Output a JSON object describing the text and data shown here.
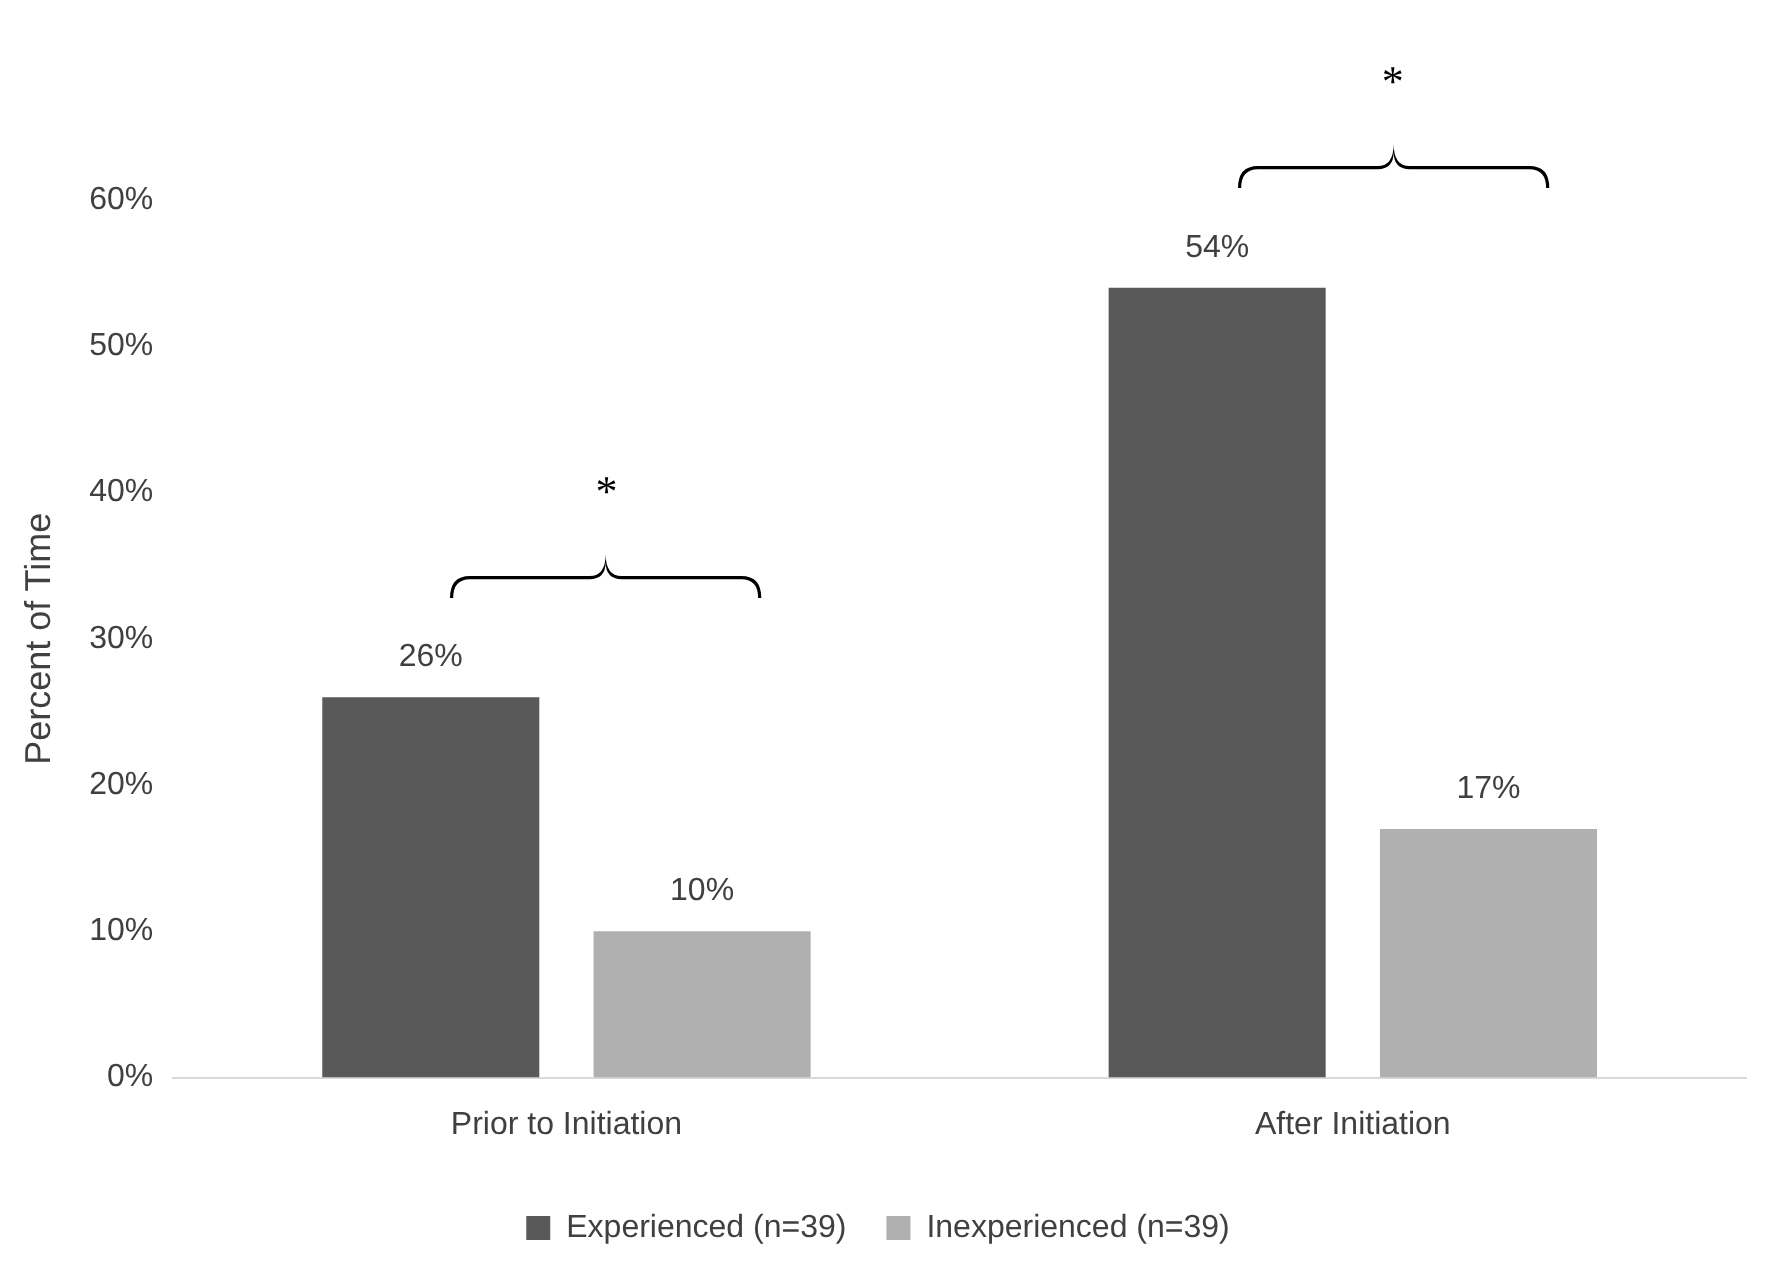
{
  "chart_data": {
    "type": "bar",
    "categories": [
      "Prior to Initiation",
      "After Initiation"
    ],
    "series": [
      {
        "name": "Experienced (n=39)",
        "color": "#595959",
        "values": [
          26,
          54
        ],
        "value_labels": [
          "26%",
          "54%"
        ]
      },
      {
        "name": "Inexperienced (n=39)",
        "color": "#b0b0b0",
        "values": [
          10,
          17
        ],
        "value_labels": [
          "10%",
          "17%"
        ]
      }
    ],
    "ylabel": "Percent of Time",
    "ylim": [
      0,
      60
    ],
    "yticks": [
      {
        "value": 0,
        "label": "0%"
      },
      {
        "value": 10,
        "label": "10%"
      },
      {
        "value": 20,
        "label": "20%"
      },
      {
        "value": 30,
        "label": "30%"
      },
      {
        "value": 40,
        "label": "40%"
      },
      {
        "value": 50,
        "label": "50%"
      },
      {
        "value": 60,
        "label": "60%"
      }
    ],
    "annotations": [
      "*",
      "*"
    ],
    "grid": false,
    "legend": "bottom"
  }
}
